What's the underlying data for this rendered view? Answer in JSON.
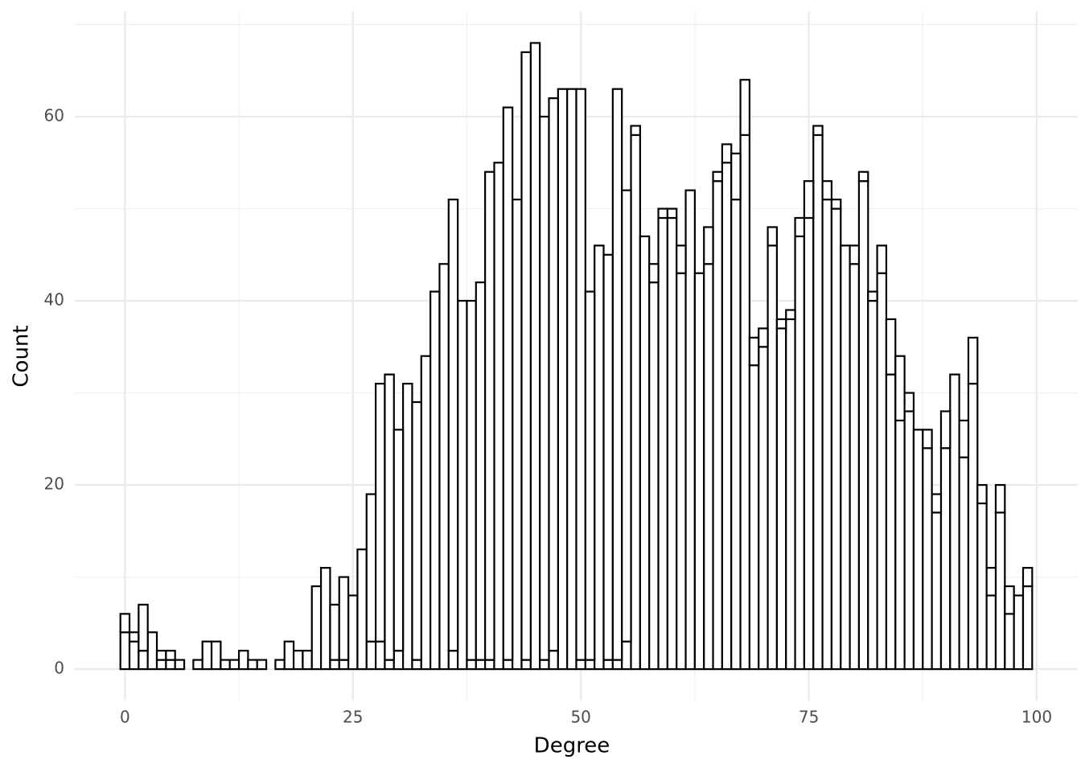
{
  "chart_data": {
    "type": "histogram",
    "x_label": "Degree",
    "y_label": "Count",
    "bins": [
      -0.5,
      0.5,
      1.5,
      2.5,
      3.5,
      4.5,
      5.5,
      6.5,
      7.5,
      8.5,
      9.5,
      10.5,
      11.5,
      12.5,
      13.5,
      14.5,
      15.5,
      16.5,
      17.5,
      18.5,
      19.5,
      20.5,
      21.5,
      22.5,
      23.5,
      24.5,
      25.5,
      26.5,
      27.5,
      28.5,
      29.5,
      30.5,
      31.5,
      32.5,
      33.5,
      34.5,
      35.5,
      36.5,
      37.5,
      38.5,
      39.5,
      40.5,
      41.5,
      42.5,
      43.5,
      44.5,
      45.5,
      46.5,
      47.5,
      48.5,
      49.5,
      50.5,
      51.5,
      52.5,
      53.5,
      54.5,
      55.5,
      56.5,
      57.5,
      58.5,
      59.5,
      60.5,
      61.5,
      62.5,
      63.5,
      64.5,
      65.5,
      66.5,
      67.5,
      68.5,
      69.5,
      70.5,
      71.5,
      72.5,
      73.5,
      74.5,
      75.5,
      76.5,
      77.5,
      78.5,
      79.5,
      80.5,
      81.5,
      82.5,
      83.5,
      84.5,
      85.5,
      86.5,
      87.5,
      88.5,
      89.5,
      90.5,
      91.5,
      92.5,
      93.5,
      94.5,
      95.5,
      96.5,
      97.5,
      98.5,
      99.5
    ],
    "series": [
      {
        "color": "#ffffff",
        "values": [
          4,
          3,
          2,
          4,
          1,
          1,
          1,
          0,
          1,
          3,
          3,
          1,
          1,
          2,
          1,
          1,
          0,
          1,
          3,
          2,
          2,
          9,
          11,
          1,
          1,
          8,
          13,
          3,
          3,
          1,
          2,
          31,
          1,
          34,
          41,
          44,
          2,
          40,
          1,
          1,
          1,
          55,
          1,
          51,
          1,
          68,
          1,
          2,
          63,
          63,
          1,
          1,
          46,
          1,
          1,
          3,
          58,
          47,
          42,
          49,
          49,
          43,
          52,
          43,
          44,
          53,
          55,
          51,
          58,
          33,
          35,
          46,
          37,
          38,
          47,
          49,
          58,
          51,
          50,
          46,
          44,
          53,
          40,
          43,
          32,
          27,
          28,
          26,
          24,
          17,
          24,
          32,
          23,
          31,
          18,
          8,
          17,
          6,
          8,
          9
        ]
      },
      {
        "color": "#ffffff",
        "values": [
          2,
          1,
          5,
          0,
          1,
          1,
          0,
          0,
          0,
          0,
          0,
          0,
          0,
          0,
          0,
          0,
          0,
          0,
          0,
          0,
          0,
          0,
          0,
          6,
          9,
          0,
          0,
          16,
          28,
          31,
          24,
          0,
          28,
          0,
          0,
          0,
          49,
          0,
          39,
          41,
          53,
          0,
          60,
          0,
          66,
          0,
          59,
          60,
          0,
          0,
          62,
          40,
          0,
          44,
          62,
          49,
          1,
          0,
          2,
          1,
          1,
          3,
          0,
          0,
          4,
          1,
          2,
          5,
          6,
          3,
          2,
          2,
          1,
          1,
          2,
          4,
          1,
          2,
          1,
          0,
          2,
          1,
          1,
          3,
          6,
          7,
          2,
          0,
          2,
          2,
          4,
          0,
          4,
          5,
          2,
          3,
          3,
          3,
          0,
          2
        ]
      }
    ],
    "edgecolor": "#000000",
    "xlim": [
      -5.5,
      104.5
    ],
    "xticks": [
      0,
      25,
      50,
      75,
      100
    ],
    "ylim": [
      -3.4,
      71.4
    ],
    "yticks": [
      0,
      20,
      40,
      60
    ],
    "grid": true
  }
}
